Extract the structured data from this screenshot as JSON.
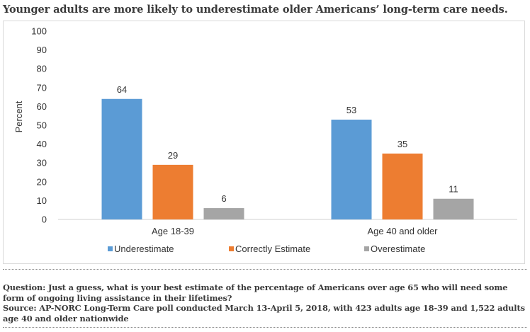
{
  "title": "Younger adults are more likely to underestimate older Americans’ long-term care needs.",
  "chart_data": {
    "type": "bar",
    "categories": [
      "Age 18-39",
      "Age 40 and older"
    ],
    "series": [
      {
        "name": "Underestimate",
        "values": [
          64,
          53
        ],
        "color": "#5b9bd5"
      },
      {
        "name": "Correctly Estimate",
        "values": [
          29,
          35
        ],
        "color": "#ed7d31"
      },
      {
        "name": "Overestimate",
        "values": [
          6,
          11
        ],
        "color": "#a5a5a5"
      }
    ],
    "ylabel": "Percent",
    "ylim": [
      0,
      100
    ],
    "yticks": [
      "0",
      "10",
      "20",
      "30",
      "40",
      "50",
      "60",
      "70",
      "80",
      "90",
      "100"
    ],
    "grid": false,
    "legend": "bottom"
  },
  "footer": {
    "question": "Question: Just a guess, what is your best estimate of the percentage of Americans over age 65 who will need some form of ongoing living assistance in their lifetimes?",
    "source": "Source: AP-NORC Long-Term Care poll conducted March 13-April 5, 2018, with 423 adults age 18-39 and 1,522 adults age 40 and older nationwide"
  }
}
